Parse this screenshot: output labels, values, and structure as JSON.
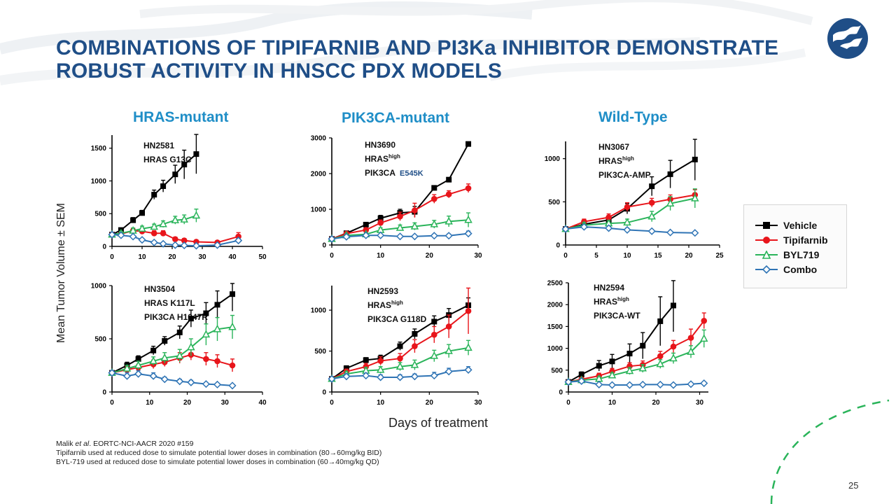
{
  "slide": {
    "title_line1": "COMBINATIONS OF TIPIFARNIB AND PI3Ka INHIBITOR DEMONSTRATE",
    "title_line2": "ROBUST ACTIVITY IN HNSCC PDX MODELS",
    "columns": [
      "HRAS-mutant",
      "PIK3CA-mutant",
      "Wild-Type"
    ],
    "ylabel": "Mean Tumor Volume ± SEM",
    "xlabel": "Days of treatment",
    "footnote_ref_author": "Malik ",
    "footnote_ref_etal": "et al",
    "footnote_ref_rest": ". EORTC-NCI-AACR 2020 #159",
    "footnote_1": "Tipifarnib used at reduced dose to simulate potential lower doses in combination (80→60mg/kg BID)",
    "footnote_2": "BYL-719 used at reduced dose to simulate potential lower doses in combination (60→40mg/kg QD)",
    "page_number": "25",
    "colors": {
      "title": "#1f4e87",
      "column_head": "#1f8ec7",
      "vehicle": "#000000",
      "tipifarnib": "#e8151b",
      "byl719": "#2ab45a",
      "combo": "#2f74b5",
      "accent_dash": "#2ab45a"
    },
    "logo_icon": "company-logo-icon"
  },
  "legend": [
    "Vehicle",
    "Tipifarnib",
    "BYL719",
    "Combo"
  ],
  "chart_data": [
    {
      "type": "line",
      "model": "HN2581",
      "annotation": [
        {
          "text": "HN2581"
        },
        {
          "text": "HRAS G13C"
        }
      ],
      "xlim": [
        0,
        50
      ],
      "xticks": [
        0,
        10,
        20,
        30,
        40,
        50
      ],
      "ylim": [
        0,
        1700
      ],
      "yticks": [
        0,
        500,
        1000,
        1500
      ],
      "series": [
        {
          "name": "Vehicle",
          "x": [
            0,
            3,
            7,
            10,
            14,
            17,
            21,
            24,
            28
          ],
          "y": [
            180,
            250,
            400,
            510,
            790,
            920,
            1100,
            1250,
            1410
          ],
          "err": [
            20,
            30,
            40,
            40,
            70,
            90,
            140,
            220,
            300
          ]
        },
        {
          "name": "Tipifarnib",
          "x": [
            0,
            3,
            7,
            10,
            14,
            17,
            21,
            24,
            28,
            35,
            42
          ],
          "y": [
            180,
            190,
            240,
            230,
            200,
            200,
            110,
            90,
            70,
            60,
            150
          ],
          "err": [
            20,
            30,
            40,
            40,
            40,
            40,
            30,
            30,
            20,
            20,
            60
          ]
        },
        {
          "name": "BYL719",
          "x": [
            0,
            3,
            7,
            10,
            14,
            17,
            21,
            24,
            28
          ],
          "y": [
            180,
            200,
            240,
            270,
            300,
            340,
            400,
            410,
            470
          ],
          "err": [
            20,
            30,
            40,
            40,
            40,
            50,
            60,
            70,
            100
          ]
        },
        {
          "name": "Combo",
          "x": [
            0,
            3,
            7,
            10,
            14,
            17,
            21,
            24,
            28,
            35,
            42
          ],
          "y": [
            180,
            170,
            150,
            100,
            60,
            40,
            20,
            15,
            10,
            20,
            90
          ],
          "err": [
            20,
            20,
            20,
            20,
            15,
            10,
            10,
            8,
            8,
            10,
            30
          ]
        }
      ]
    },
    {
      "type": "line",
      "model": "HN3690",
      "annotation": [
        {
          "text": "HN3690"
        },
        {
          "text": "HRAS",
          "sup": "high"
        },
        {
          "text": "PIK3CA",
          "extra": "E545K"
        }
      ],
      "xlim": [
        0,
        30
      ],
      "xticks": [
        0,
        10,
        20,
        30
      ],
      "ylim": [
        0,
        3000
      ],
      "yticks": [
        0,
        1000,
        2000,
        3000
      ],
      "series": [
        {
          "name": "Vehicle",
          "x": [
            0,
            3,
            7,
            10,
            14,
            17,
            21,
            24,
            28
          ],
          "y": [
            170,
            330,
            570,
            750,
            900,
            930,
            1600,
            1830,
            2830
          ],
          "err": [
            20,
            40,
            60,
            80,
            100,
            150,
            40,
            40,
            40
          ]
        },
        {
          "name": "Tipifarnib",
          "x": [
            0,
            3,
            7,
            10,
            14,
            17,
            21,
            24,
            28
          ],
          "y": [
            170,
            320,
            420,
            620,
            800,
            970,
            1290,
            1420,
            1590
          ],
          "err": [
            20,
            40,
            60,
            80,
            120,
            200,
            120,
            100,
            120
          ]
        },
        {
          "name": "BYL719",
          "x": [
            0,
            3,
            7,
            10,
            14,
            17,
            21,
            24,
            28
          ],
          "y": [
            170,
            270,
            300,
            420,
            480,
            520,
            580,
            660,
            700
          ],
          "err": [
            20,
            40,
            40,
            60,
            80,
            100,
            110,
            150,
            200
          ]
        },
        {
          "name": "Combo",
          "x": [
            0,
            3,
            7,
            10,
            14,
            17,
            21,
            24,
            28
          ],
          "y": [
            170,
            230,
            270,
            270,
            240,
            240,
            260,
            260,
            320
          ],
          "err": [
            20,
            30,
            30,
            40,
            40,
            40,
            40,
            50,
            70
          ]
        }
      ]
    },
    {
      "type": "line",
      "model": "HN3067",
      "annotation": [
        {
          "text": "HN3067"
        },
        {
          "text": "HRAS",
          "sup": "high"
        },
        {
          "text": "PIK3CA-AMP"
        }
      ],
      "xlim": [
        0,
        25
      ],
      "xticks": [
        0,
        5,
        10,
        15,
        20,
        25
      ],
      "ylim": [
        0,
        1200
      ],
      "yticks": [
        0,
        500,
        1000
      ],
      "series": [
        {
          "name": "Vehicle",
          "x": [
            0,
            3,
            7,
            10,
            14,
            17,
            21
          ],
          "y": [
            185,
            240,
            290,
            420,
            680,
            820,
            990
          ],
          "err": [
            20,
            30,
            40,
            60,
            110,
            160,
            240
          ]
        },
        {
          "name": "Tipifarnib",
          "x": [
            0,
            3,
            7,
            10,
            14,
            17,
            21
          ],
          "y": [
            185,
            270,
            320,
            440,
            490,
            530,
            580
          ],
          "err": [
            20,
            30,
            40,
            50,
            50,
            50,
            60
          ]
        },
        {
          "name": "BYL719",
          "x": [
            0,
            3,
            7,
            10,
            14,
            17,
            21
          ],
          "y": [
            185,
            230,
            250,
            260,
            330,
            480,
            540
          ],
          "err": [
            20,
            30,
            30,
            40,
            60,
            80,
            110
          ]
        },
        {
          "name": "Combo",
          "x": [
            0,
            3,
            7,
            10,
            14,
            17,
            21
          ],
          "y": [
            185,
            210,
            195,
            175,
            160,
            145,
            140
          ],
          "err": [
            20,
            20,
            20,
            20,
            15,
            15,
            15
          ]
        }
      ]
    },
    {
      "type": "line",
      "model": "HN3504",
      "annotation": [
        {
          "text": "HN3504"
        },
        {
          "text": "HRAS K117L"
        },
        {
          "text": "PIK3CA H1047R"
        }
      ],
      "xlim": [
        0,
        40
      ],
      "xticks": [
        0,
        10,
        20,
        30,
        40
      ],
      "ylim": [
        0,
        1000
      ],
      "yticks": [
        0,
        500,
        1000
      ],
      "series": [
        {
          "name": "Vehicle",
          "x": [
            0,
            4,
            7,
            11,
            14,
            18,
            21,
            25,
            28,
            32
          ],
          "y": [
            180,
            250,
            310,
            390,
            480,
            560,
            690,
            740,
            820,
            920
          ],
          "err": [
            20,
            30,
            30,
            40,
            40,
            60,
            80,
            100,
            130,
            160
          ]
        },
        {
          "name": "Tipifarnib",
          "x": [
            0,
            4,
            7,
            11,
            14,
            18,
            21,
            25,
            28,
            32
          ],
          "y": [
            180,
            210,
            230,
            260,
            280,
            320,
            350,
            310,
            290,
            250
          ],
          "err": [
            20,
            30,
            30,
            40,
            40,
            50,
            50,
            60,
            60,
            60
          ]
        },
        {
          "name": "BYL719",
          "x": [
            0,
            4,
            7,
            11,
            14,
            18,
            21,
            25,
            28,
            32
          ],
          "y": [
            180,
            220,
            250,
            290,
            320,
            340,
            420,
            540,
            590,
            610
          ],
          "err": [
            20,
            30,
            40,
            40,
            50,
            60,
            80,
            100,
            110,
            110
          ]
        },
        {
          "name": "Combo",
          "x": [
            0,
            4,
            7,
            11,
            14,
            18,
            21,
            25,
            28,
            32
          ],
          "y": [
            180,
            150,
            170,
            150,
            120,
            100,
            90,
            75,
            70,
            60
          ],
          "err": [
            20,
            30,
            30,
            30,
            20,
            20,
            20,
            10,
            10,
            10
          ]
        }
      ]
    },
    {
      "type": "line",
      "model": "HN2593",
      "annotation": [
        {
          "text": "HN2593"
        },
        {
          "text": "HRAS",
          "sup": "high"
        },
        {
          "text": "PIK3CA G118D"
        }
      ],
      "xlim": [
        0,
        30
      ],
      "xticks": [
        0,
        10,
        20,
        30
      ],
      "ylim": [
        0,
        1300
      ],
      "yticks": [
        0,
        500,
        1000
      ],
      "series": [
        {
          "name": "Vehicle",
          "x": [
            0,
            3,
            7,
            10,
            14,
            17,
            21,
            24,
            28
          ],
          "y": [
            160,
            290,
            390,
            410,
            560,
            710,
            860,
            940,
            1060
          ],
          "err": [
            20,
            30,
            30,
            40,
            50,
            60,
            70,
            80,
            90
          ]
        },
        {
          "name": "Tipifarnib",
          "x": [
            0,
            3,
            7,
            10,
            14,
            17,
            21,
            24,
            28
          ],
          "y": [
            160,
            250,
            310,
            380,
            410,
            560,
            700,
            800,
            990
          ],
          "err": [
            20,
            30,
            40,
            50,
            60,
            80,
            100,
            140,
            280
          ]
        },
        {
          "name": "BYL719",
          "x": [
            0,
            3,
            7,
            10,
            14,
            17,
            21,
            24,
            28
          ],
          "y": [
            160,
            220,
            260,
            270,
            310,
            330,
            440,
            500,
            540
          ],
          "err": [
            20,
            30,
            40,
            40,
            50,
            60,
            70,
            80,
            90
          ]
        },
        {
          "name": "Combo",
          "x": [
            0,
            3,
            7,
            10,
            14,
            17,
            21,
            24,
            28
          ],
          "y": [
            160,
            190,
            200,
            180,
            180,
            190,
            200,
            250,
            270
          ],
          "err": [
            20,
            30,
            30,
            30,
            30,
            30,
            40,
            40,
            40
          ]
        }
      ]
    },
    {
      "type": "line",
      "model": "HN2594",
      "annotation": [
        {
          "text": "HN2594"
        },
        {
          "text": "HRAS",
          "sup": "high"
        },
        {
          "text": "PIK3CA-WT"
        }
      ],
      "xlim": [
        0,
        32
      ],
      "xticks": [
        0,
        10,
        20,
        30
      ],
      "ylim": [
        0,
        2500
      ],
      "yticks": [
        0,
        500,
        1000,
        1500,
        2000,
        2500
      ],
      "series": [
        {
          "name": "Vehicle",
          "x": [
            0,
            3,
            7,
            10,
            14,
            17,
            21,
            24
          ],
          "y": [
            230,
            400,
            600,
            700,
            880,
            1060,
            1620,
            1980
          ],
          "err": [
            30,
            60,
            120,
            160,
            220,
            300,
            560,
            600
          ]
        },
        {
          "name": "Tipifarnib",
          "x": [
            0,
            3,
            7,
            10,
            14,
            17,
            21,
            24,
            28,
            31
          ],
          "y": [
            230,
            290,
            370,
            470,
            590,
            620,
            820,
            1040,
            1240,
            1630
          ],
          "err": [
            30,
            40,
            60,
            70,
            80,
            90,
            110,
            140,
            200,
            180
          ]
        },
        {
          "name": "BYL719",
          "x": [
            0,
            3,
            7,
            10,
            14,
            17,
            21,
            24,
            28,
            31
          ],
          "y": [
            230,
            270,
            300,
            380,
            480,
            540,
            640,
            770,
            920,
            1220
          ],
          "err": [
            30,
            40,
            50,
            60,
            80,
            90,
            100,
            120,
            140,
            200
          ]
        },
        {
          "name": "Combo",
          "x": [
            0,
            3,
            7,
            10,
            14,
            17,
            21,
            24,
            28,
            31
          ],
          "y": [
            230,
            250,
            170,
            160,
            160,
            170,
            170,
            160,
            180,
            200
          ],
          "err": [
            30,
            40,
            30,
            20,
            20,
            20,
            20,
            20,
            20,
            20
          ]
        }
      ]
    }
  ]
}
